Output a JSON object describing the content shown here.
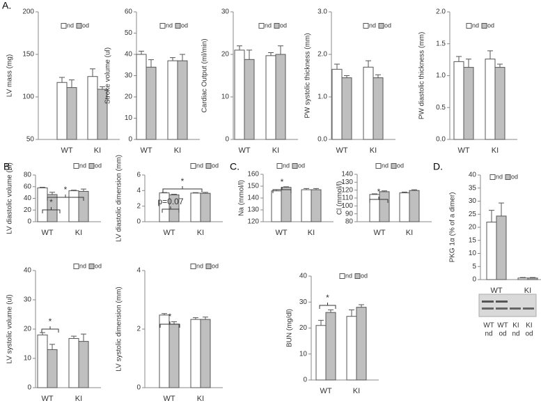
{
  "panels": [
    "A.",
    "B.",
    "C.",
    "D."
  ],
  "blot": {
    "lanes": [
      [
        "WT",
        "nd"
      ],
      [
        "WT",
        "od"
      ],
      [
        "KI",
        "nd"
      ],
      [
        "KI",
        "od"
      ]
    ]
  },
  "chart_data": [
    {
      "type": "bar",
      "ylabel": "LV mass  (mg)",
      "categories": [
        "WT",
        "KI"
      ],
      "ylim": [
        50,
        200
      ],
      "yticks": [
        50,
        100,
        150,
        200
      ],
      "series": [
        {
          "name": "nd",
          "color": "#ffffff",
          "values": [
            117,
            124
          ],
          "errors": [
            6,
            9
          ]
        },
        {
          "name": "od",
          "color": "#bfbfbf",
          "values": [
            111,
            109
          ],
          "errors": [
            9,
            3
          ]
        }
      ]
    },
    {
      "type": "bar",
      "ylabel": "Stroke volume  (ul)",
      "categories": [
        "WT",
        "KI"
      ],
      "ylim": [
        0,
        60
      ],
      "yticks": [
        0,
        10,
        20,
        30,
        40,
        50,
        60
      ],
      "series": [
        {
          "name": "nd",
          "color": "#ffffff",
          "values": [
            40,
            37
          ],
          "errors": [
            1.5,
            1.5
          ]
        },
        {
          "name": "od",
          "color": "#bfbfbf",
          "values": [
            34,
            37
          ],
          "errors": [
            3.5,
            3
          ]
        }
      ]
    },
    {
      "type": "bar",
      "ylabel": "Cardiac Output (ml/min)",
      "categories": [
        "WT",
        "KI"
      ],
      "ylim": [
        0,
        30
      ],
      "yticks": [
        0,
        10,
        20,
        30
      ],
      "series": [
        {
          "name": "nd",
          "color": "#ffffff",
          "values": [
            21,
            19.7
          ],
          "errors": [
            1,
            0.7
          ]
        },
        {
          "name": "od",
          "color": "#bfbfbf",
          "values": [
            18.8,
            20
          ],
          "errors": [
            2.2,
            2
          ]
        }
      ]
    },
    {
      "type": "bar",
      "ylabel": "PW systolic thickness (mm)",
      "categories": [
        "WT",
        "KI"
      ],
      "ylim": [
        0,
        3
      ],
      "yticks": [
        {
          "value": 0,
          "label": "0.0"
        },
        {
          "value": 1,
          "label": "1.0"
        },
        {
          "value": 2,
          "label": "2.0"
        },
        {
          "value": 3,
          "label": "3.0"
        }
      ],
      "series": [
        {
          "name": "nd",
          "color": "#ffffff",
          "values": [
            1.65,
            1.7
          ],
          "errors": [
            0.12,
            0.15
          ]
        },
        {
          "name": "od",
          "color": "#bfbfbf",
          "values": [
            1.45,
            1.45
          ],
          "errors": [
            0.05,
            0.07
          ]
        }
      ]
    },
    {
      "type": "bar",
      "ylabel": "PW diastolic thickness (mm)",
      "categories": [
        "WT",
        "KI"
      ],
      "ylim": [
        0,
        2
      ],
      "yticks": [
        {
          "value": 0,
          "label": "0.0"
        },
        0.5,
        {
          "value": 1,
          "label": "1.0"
        },
        1.5,
        {
          "value": 2,
          "label": "2.0"
        }
      ],
      "series": [
        {
          "name": "nd",
          "color": "#ffffff",
          "values": [
            1.22,
            1.26
          ],
          "errors": [
            0.08,
            0.13
          ]
        },
        {
          "name": "od",
          "color": "#bfbfbf",
          "values": [
            1.13,
            1.13
          ],
          "errors": [
            0.13,
            0.05
          ]
        }
      ]
    },
    {
      "type": "bar",
      "ylabel": "LV diastolic volume  (ul)",
      "categories": [
        "WT",
        "KI"
      ],
      "ylim": [
        0,
        80
      ],
      "yticks": [
        0,
        20,
        40,
        60,
        80
      ],
      "annotations": [
        "*",
        "*"
      ],
      "series": [
        {
          "name": "nd",
          "color": "#ffffff",
          "values": [
            58,
            53
          ],
          "errors": [
            1,
            1
          ]
        },
        {
          "name": "od",
          "color": "#bfbfbf",
          "values": [
            46.5,
            52
          ],
          "errors": [
            4,
            4
          ]
        }
      ]
    },
    {
      "type": "bar",
      "ylabel": "LV diastolic dimension  (mm)",
      "categories": [
        "WT",
        "KI"
      ],
      "ylim": [
        0,
        6
      ],
      "yticks": [
        0,
        2,
        4,
        6
      ],
      "annotations": [
        "p=0.07",
        "*"
      ],
      "series": [
        {
          "name": "nd",
          "color": "#ffffff",
          "values": [
            3.7,
            3.68
          ],
          "errors": [
            0.05,
            0.06
          ]
        },
        {
          "name": "od",
          "color": "#bfbfbf",
          "values": [
            3.45,
            3.65
          ],
          "errors": [
            0.08,
            0.12
          ]
        }
      ]
    },
    {
      "type": "bar",
      "ylabel": "LV systolic volume  (ul)",
      "categories": [
        "WT",
        "KI"
      ],
      "ylim": [
        0,
        40
      ],
      "yticks": [
        0,
        10,
        20,
        30,
        40
      ],
      "annotations": [
        "*"
      ],
      "series": [
        {
          "name": "nd",
          "color": "#ffffff",
          "values": [
            18,
            16.8
          ],
          "errors": [
            0.8,
            0.8
          ]
        },
        {
          "name": "od",
          "color": "#bfbfbf",
          "values": [
            13,
            15.8
          ],
          "errors": [
            1.8,
            2.5
          ]
        }
      ]
    },
    {
      "type": "bar",
      "ylabel": "LV systolic dimension  (mm)",
      "categories": [
        "WT",
        "KI"
      ],
      "ylim": [
        0,
        4
      ],
      "yticks": [
        0,
        2,
        4
      ],
      "annotations": [
        "*"
      ],
      "series": [
        {
          "name": "nd",
          "color": "#ffffff",
          "values": [
            2.48,
            2.33
          ],
          "errors": [
            0.05,
            0.06
          ]
        },
        {
          "name": "od",
          "color": "#bfbfbf",
          "values": [
            2.17,
            2.33
          ],
          "errors": [
            0.08,
            0.08
          ]
        }
      ]
    },
    {
      "type": "bar",
      "ylabel": "Na  (mmol/l)",
      "categories": [
        "WT",
        "KI"
      ],
      "ylim": [
        120,
        160
      ],
      "yticks": [
        120,
        130,
        140,
        150,
        160
      ],
      "annotations": [
        "*"
      ],
      "series": [
        {
          "name": "nd",
          "color": "#ffffff",
          "values": [
            146,
            147
          ],
          "errors": [
            1,
            1
          ]
        },
        {
          "name": "od",
          "color": "#bfbfbf",
          "values": [
            149,
            147
          ],
          "errors": [
            0.5,
            1
          ]
        }
      ]
    },
    {
      "type": "bar",
      "ylabel": "Cl  (mmol/l)",
      "categories": [
        "WT",
        "KI"
      ],
      "ylim": [
        80,
        140
      ],
      "yticks": [
        80,
        90,
        100,
        110,
        120,
        130,
        140
      ],
      "annotations": [
        "*"
      ],
      "series": [
        {
          "name": "nd",
          "color": "#ffffff",
          "values": [
            114.5,
            116.5
          ],
          "errors": [
            0.8,
            1
          ]
        },
        {
          "name": "od",
          "color": "#bfbfbf",
          "values": [
            118,
            119.5
          ],
          "errors": [
            1,
            1
          ]
        }
      ]
    },
    {
      "type": "bar",
      "ylabel": "BUN  (mg/dl)",
      "categories": [
        "WT",
        "KI"
      ],
      "ylim": [
        0,
        40
      ],
      "yticks": [
        0,
        10,
        20,
        30,
        40
      ],
      "annotations": [
        "*"
      ],
      "series": [
        {
          "name": "nd",
          "color": "#ffffff",
          "values": [
            21,
            24.5
          ],
          "errors": [
            2,
            2.5
          ]
        },
        {
          "name": "od",
          "color": "#bfbfbf",
          "values": [
            26,
            28
          ],
          "errors": [
            1,
            1
          ]
        }
      ]
    },
    {
      "type": "bar",
      "ylabel": "PKG 1α (% of a dimer)",
      "categories": [
        "WT",
        "KI"
      ],
      "ylim": [
        0,
        40
      ],
      "yticks": [
        0,
        5,
        10,
        15,
        20,
        25,
        30,
        35,
        40
      ],
      "series": [
        {
          "name": "nd",
          "color": "#ffffff",
          "values": [
            22,
            0.6
          ],
          "errors": [
            4.5,
            0.2
          ]
        },
        {
          "name": "od",
          "color": "#bfbfbf",
          "values": [
            24.3,
            0.6
          ],
          "errors": [
            5,
            0.2
          ]
        }
      ]
    }
  ]
}
